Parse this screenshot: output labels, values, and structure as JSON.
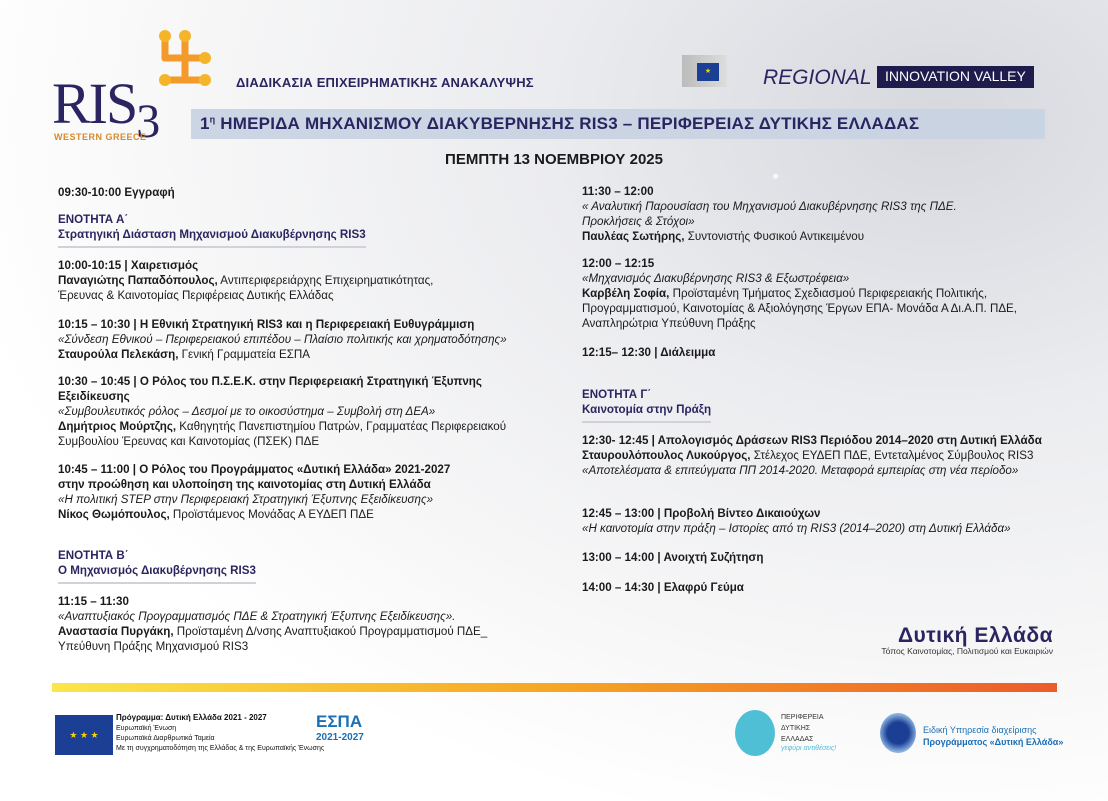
{
  "header": {
    "logo_main": "RIS",
    "logo_sub": "3",
    "logo_region": "WESTERN GREECE",
    "tagline": "ΔΙΑΔΙΚΑΣΙΑ ΕΠΙΧΕΙΡΗΜΑΤΙΚΗΣ ΑΝΑΚΑΛΥΨΗΣ",
    "regional": "REGIONAL",
    "innovation_valley": "INNOVATION VALLEY",
    "title_sup": "η",
    "title_num": "1",
    "title": " ΗΜΕΡΙΔΑ ΜΗΧΑΝΙΣΜΟΥ ΔΙΑΚΥΒΕΡΝΗΣΗΣ RIS3 – ΠΕΡΙΦΕΡΕΙΑΣ ΔΥΤΙΚΗΣ ΕΛΛΑΔΑΣ",
    "date": "ΠΕΜΠΤΗ 13 ΝΟΕΜΒΡΙΟΥ 2025"
  },
  "agenda": {
    "registration": "09:30-10:00 Εγγραφή",
    "section_a": {
      "label": "ΕΝΟΤΗΤΑ Α΄",
      "title": "Στρατηγική Διάσταση Μηχανισμού Διακυβέρνησης RIS3"
    },
    "section_b": {
      "label": "ΕΝΟΤΗΤΑ Β΄",
      "title": "Ο Μηχανισμός Διακυβέρνησης RIS3"
    },
    "section_c": {
      "label": "ΕΝΟΤΗΤΑ Γ΄",
      "title": "Καινοτομία στην Πράξη"
    },
    "items": [
      {
        "title": "10:00-10:15 | Χαιρετισμός",
        "speaker": "Παναγιώτης Παπαδόπουλος,",
        "role": " Αντιπεριφερειάρχης Επιχειρηματικότητας, Έρευνας & Καινοτομίας Περιφέρειας  Δυτικής Ελλάδας"
      },
      {
        "title": "10:15 – 10:30 | Η Εθνική Στρατηγική RIS3 και η Περιφερειακή Ευθυγράμμιση",
        "subtitle": "«Σύνδεση Εθνικού – Περιφερειακού επιπέδου – Πλαίσιο πολιτικής και χρηματοδότησης»",
        "speaker": "Σταυρούλα Πελεκάση,",
        "role": " Γενική Γραμματεία ΕΣΠΑ"
      },
      {
        "title": "10:30 – 10:45 |  Ο Ρόλος του Π.Σ.Ε.Κ. στην Περιφερειακή Στρατηγική Έξυπνης Εξειδίκευσης",
        "subtitle": "«Συμβουλευτικός ρόλος – Δεσμοί με το οικοσύστημα – Συμβολή στη ΔΕΑ»",
        "speaker": "Δημήτριος Μούρτζης,",
        "role": " Καθηγητής Πανεπιστημίου Πατρών, Γραμματέας Περιφερειακού Συμβουλίου Έρευνας και Καινοτομίας (ΠΣΕΚ) ΠΔΕ"
      },
      {
        "title": "10:45 – 11:00 | Ο Ρόλος του Προγράμματος «Δυτική Ελλάδα» 2021-2027",
        "title2": "στην προώθηση και υλοποίηση της καινοτομίας στη Δυτική Ελλάδα",
        "subtitle": "«Η πολιτική STEP στην Περιφερειακή Στρατηγική Έξυπνης Εξειδίκευσης»",
        "speaker": "Νίκος Θωμόπουλος,",
        "role": " Προϊστάμενος Μονάδας Α ΕΥΔΕΠ ΠΔΕ"
      },
      {
        "title": "11:15 – 11:30",
        "subtitle": "«Αναπτυξιακός Προγραμματισμός ΠΔΕ & Στρατηγική Έξυπνης Εξειδίκευσης».",
        "speaker": "Αναστασία Πυργάκη,",
        "role": " Προϊσταμένη Δ/νσης Αναπτυξιακού Προγραμματισμού ΠΔΕ_ Υπεύθυνη Πράξης Μηχανισμού RIS3"
      },
      {
        "title": "11:30 – 12:00",
        "subtitle": "« Αναλυτική Παρουσίαση του Μηχανισμού Διακυβέρνησης RIS3 της ΠΔΕ. Προκλήσεις & Στόχοι»",
        "speaker": "Παυλέας Σωτήρης,",
        "role": " Συντονιστής Φυσικού Αντικειμένου"
      },
      {
        "title": "12:00 – 12:15",
        "subtitle": "«Μηχανισμός Διακυβέρνησης RIS3 &  Εξωστρέφεια»",
        "speaker": "Καρβέλη Σοφία,",
        "role": " Προϊσταμένη Τμήματος Σχεδιασμού Περιφερειακής Πολιτικής, Προγραμματισμού, Καινοτομίας & Αξιολόγησης Έργων ΕΠΑ- Μονάδα Α Δι.Α.Π. ΠΔΕ, Αναπληρώτρια Υπεύθυνη Πράξης"
      },
      {
        "title": "12:15– 12:30 | Διάλειμμα"
      },
      {
        "title": "12:30- 12:45 | Απολογισμός Δράσεων RIS3 Περιόδου 2014–2020 στη Δυτική Ελλάδα",
        "speaker": "Σταυρουλόπουλος Λυκούργος,",
        "role": " Στέλεχος ΕΥΔΕΠ ΠΔΕ, Εντεταλμένος Σύμβουλος RIS3",
        "subtitle": "«Αποτελέσματα & επιτεύγματα ΠΠ 2014-2020. Μεταφορά εμπειρίας στη νέα περίοδο»"
      },
      {
        "title": "12:45 – 13:00 | Προβολή Βίντεο Δικαιούχων",
        "subtitle": "«Η καινοτομία στην πράξη – Ιστορίες από τη RIS3 (2014–2020) στη Δυτική Ελλάδα»"
      },
      {
        "title": "13:00 – 14:00 | Ανοιχτή Συζήτηση"
      },
      {
        "title": "14:00 – 14:30 | Ελαφρύ Γεύμα"
      }
    ]
  },
  "slogan": {
    "title": "Δυτική Ελλάδα",
    "subtitle": "Τόπος Καινοτομίας, Πολιτισμού και Ευκαιριών"
  },
  "footer": {
    "program_title": "Πρόγραμμα: Δυτική Ελλάδα 2021 - 2027",
    "eu_line1": "Ευρωπαϊκή Ένωση",
    "eu_line2": "Ευρωπαϊκά Διαρθρωτικά Ταμεία",
    "cofund": "Με τη συγχρηματοδότηση της Ελλάδας & της Ευρωπαϊκής Ένωσης",
    "espa": "ΕΣΠΑ",
    "espa_years": "2021-2027",
    "region_l1": "ΠΕΡΙΦΕΡΕΙΑ",
    "region_l2": "ΔΥΤΙΚΗΣ",
    "region_l3": "ΕΛΛΑΔΑΣ",
    "region_slogan": "γεφύρι αντιθέσεις!",
    "authority_l1": "Ειδική Υπηρεσία διαχείρισης",
    "authority_l2": "Προγράμματος «Δυτική Ελλάδα»"
  },
  "colors": {
    "navy": "#2a2560",
    "gradient_start": "#fbe64a",
    "gradient_end": "#ec5b2b",
    "eu_blue": "#1b3f95"
  }
}
